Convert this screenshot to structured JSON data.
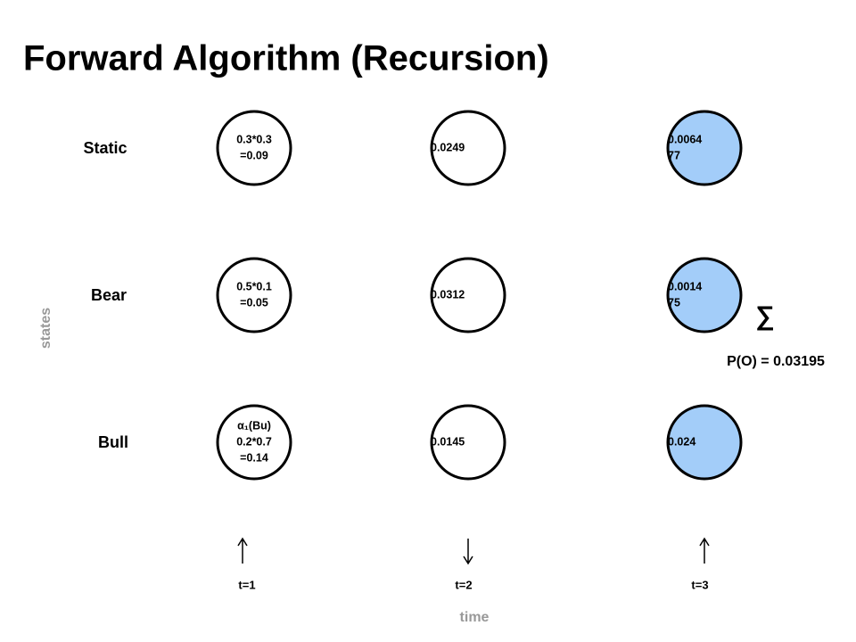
{
  "title": "Forward Algorithm (Recursion)",
  "axis_labels": {
    "y": "states",
    "x": "time"
  },
  "states": [
    "Static",
    "Bear",
    "Bull"
  ],
  "time_steps": [
    "t=1",
    "t=2",
    "t=3"
  ],
  "grid": [
    [
      {
        "lines": [
          "0.3*0.3",
          "=0.09"
        ]
      },
      {
        "lines": [
          "0.0249"
        ]
      },
      {
        "lines": [
          "0.0064",
          "77"
        ]
      }
    ],
    [
      {
        "lines": [
          "0.5*0.1",
          "=0.05"
        ]
      },
      {
        "lines": [
          "0.0312"
        ]
      },
      {
        "lines": [
          "0.0014",
          "75"
        ]
      }
    ],
    [
      {
        "lines": [
          "α₁(Bu)",
          "0.2*0.7",
          "=0.14"
        ]
      },
      {
        "lines": [
          "0.0145"
        ]
      },
      {
        "lines": [
          "0.024"
        ]
      }
    ]
  ],
  "sum_symbol": "∑",
  "result": "P(O) = 0.03195"
}
